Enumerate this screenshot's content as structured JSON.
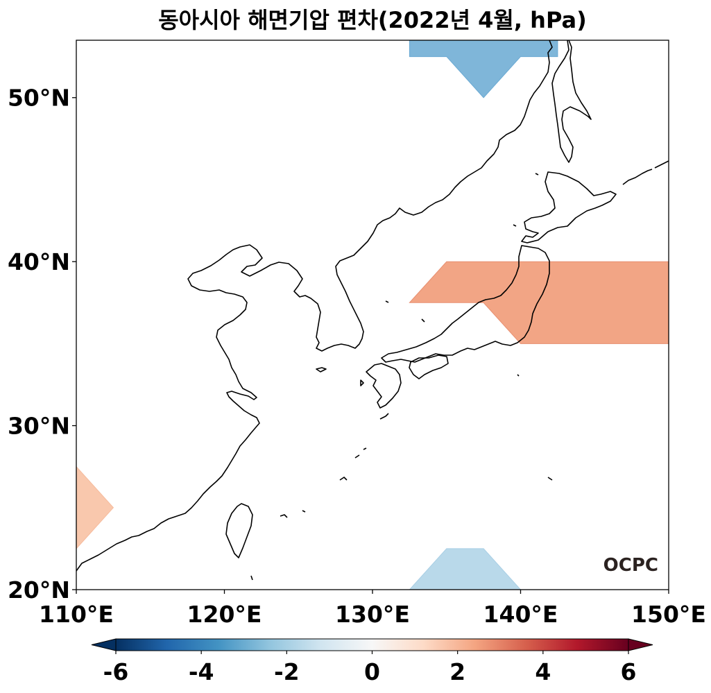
{
  "title": "동아시아 해면기압 편차(2022년 4월, hPa)",
  "logo_text": "OCPC",
  "map": {
    "lon_range": [
      110,
      150
    ],
    "lat_range": [
      20,
      53.5
    ],
    "x_ticks": [
      {
        "value": 110,
        "label": "110°E"
      },
      {
        "value": 120,
        "label": "120°E"
      },
      {
        "value": 130,
        "label": "130°E"
      },
      {
        "value": 140,
        "label": "140°E"
      },
      {
        "value": 150,
        "label": "150°E"
      }
    ],
    "y_ticks": [
      {
        "value": 20,
        "label": "20°N"
      },
      {
        "value": 30,
        "label": "30°N"
      },
      {
        "value": 40,
        "label": "40°N"
      },
      {
        "value": 50,
        "label": "50°N"
      }
    ],
    "anomaly_regions": [
      {
        "name": "north-negative",
        "color": "#7fb6d9",
        "edge": "#6aa9d3",
        "points": [
          [
            132.5,
            53.5
          ],
          [
            142.5,
            53.5
          ],
          [
            142.5,
            52.5
          ],
          [
            140.0,
            52.5
          ],
          [
            137.5,
            50.0
          ],
          [
            135.0,
            52.5
          ],
          [
            132.5,
            52.5
          ]
        ]
      },
      {
        "name": "east-positive",
        "color": "#f2a585",
        "edge": "#e88f70",
        "points": [
          [
            135.0,
            40.0
          ],
          [
            150.0,
            40.0
          ],
          [
            150.0,
            35.0
          ],
          [
            140.0,
            35.0
          ],
          [
            137.5,
            37.5
          ],
          [
            132.5,
            37.5
          ]
        ]
      },
      {
        "name": "southwest-positive",
        "color": "#f9c8ad",
        "edge": "#f6bb9c",
        "points": [
          [
            110.0,
            27.5
          ],
          [
            112.5,
            25.0
          ],
          [
            110.0,
            22.5
          ]
        ]
      },
      {
        "name": "south-negative",
        "color": "#b9d9ea",
        "edge": "#a9cfe5",
        "points": [
          [
            135.0,
            22.5
          ],
          [
            137.5,
            22.5
          ],
          [
            140.0,
            20.0
          ],
          [
            132.5,
            20.0
          ]
        ]
      }
    ]
  },
  "colorbar": {
    "min": -6,
    "max": 6,
    "ticks": [
      {
        "value": -6,
        "label": "-6"
      },
      {
        "value": -4,
        "label": "-4"
      },
      {
        "value": -2,
        "label": "-2"
      },
      {
        "value": 0,
        "label": "0"
      },
      {
        "value": 2,
        "label": "2"
      },
      {
        "value": 4,
        "label": "4"
      },
      {
        "value": 6,
        "label": "6"
      }
    ],
    "colors": [
      "#053061",
      "#2166ac",
      "#4393c3",
      "#92c5de",
      "#d1e5f0",
      "#f7f7f7",
      "#fddbc7",
      "#f4a582",
      "#d6604d",
      "#b2182b",
      "#67001f"
    ]
  }
}
